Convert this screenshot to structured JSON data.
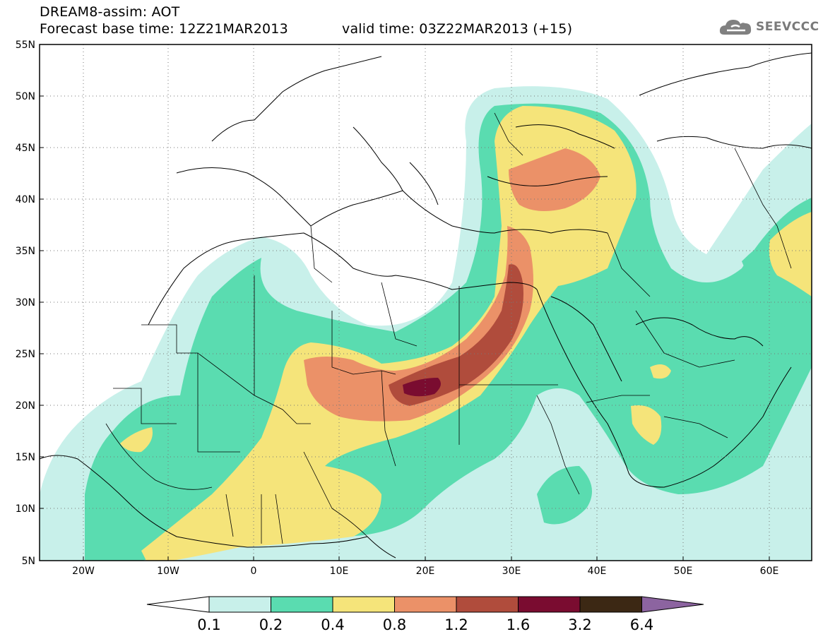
{
  "header": {
    "title": "DREAM8-assim: AOT",
    "base_time": "Forecast base time: 12Z21MAR2013",
    "valid_time": "valid time: 03Z22MAR2013 (+15)",
    "logo_text": "SEEVCCC",
    "logo_icon": "cloud-logo-icon"
  },
  "map": {
    "lat_labels": [
      "55N",
      "50N",
      "45N",
      "40N",
      "35N",
      "30N",
      "25N",
      "20N",
      "15N",
      "10N",
      "5N"
    ],
    "lon_labels": [
      "20W",
      "10W",
      "0",
      "10E",
      "20E",
      "30E",
      "40E",
      "50E",
      "60E"
    ],
    "lat_range": [
      5,
      55
    ],
    "lon_range": [
      -25,
      65
    ],
    "gridlines": "dotted"
  },
  "colorbar": {
    "labels": [
      "0.1",
      "0.2",
      "0.4",
      "0.8",
      "1.2",
      "1.6",
      "3.2",
      "6.4"
    ],
    "colors": [
      "#ffffff",
      "#c8f0ea",
      "#5adcb0",
      "#f5e47a",
      "#eb9168",
      "#b04c3c",
      "#7a0c30",
      "#3c2814",
      "#8c64a0"
    ]
  },
  "colors": {
    "level1": "#c8f0ea",
    "level2": "#5adcb0",
    "level3": "#f5e47a",
    "level4": "#eb9168",
    "level5": "#b04c3c",
    "level6": "#7a0c30",
    "border": "#000000"
  }
}
